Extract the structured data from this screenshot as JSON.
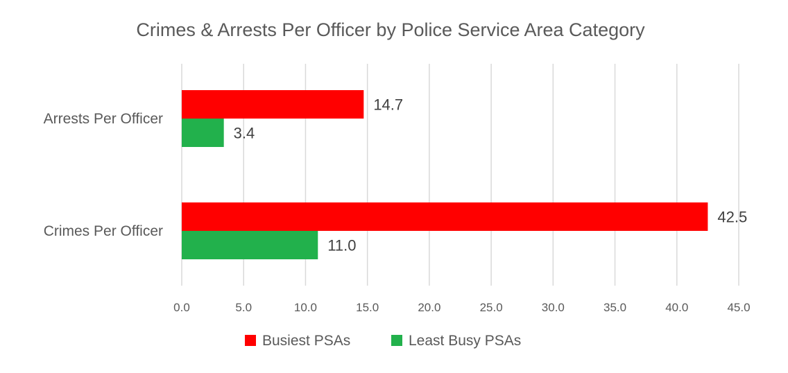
{
  "chart_data": {
    "type": "bar",
    "orientation": "horizontal",
    "title": "Crimes & Arrests Per Officer by Police Service Area Category",
    "categories": [
      "Arrests Per Officer",
      "Crimes Per Officer"
    ],
    "series": [
      {
        "name": "Busiest PSAs",
        "color": "#ff0000",
        "values": [
          14.7,
          42.5
        ],
        "labels": [
          "14.7",
          "42.5"
        ]
      },
      {
        "name": "Least Busy PSAs",
        "color": "#22b14c",
        "values": [
          3.4,
          11.0
        ],
        "labels": [
          "3.4",
          "11.0"
        ]
      }
    ],
    "xlim": [
      0,
      45
    ],
    "xticks": [
      0,
      5,
      10,
      15,
      20,
      25,
      30,
      35,
      40,
      45
    ],
    "xtick_labels": [
      "0.0",
      "5.0",
      "10.0",
      "15.0",
      "20.0",
      "25.0",
      "30.0",
      "35.0",
      "40.0",
      "45.0"
    ],
    "xlabel": "",
    "ylabel": "",
    "grid": "vertical",
    "legend_position": "bottom-center"
  }
}
